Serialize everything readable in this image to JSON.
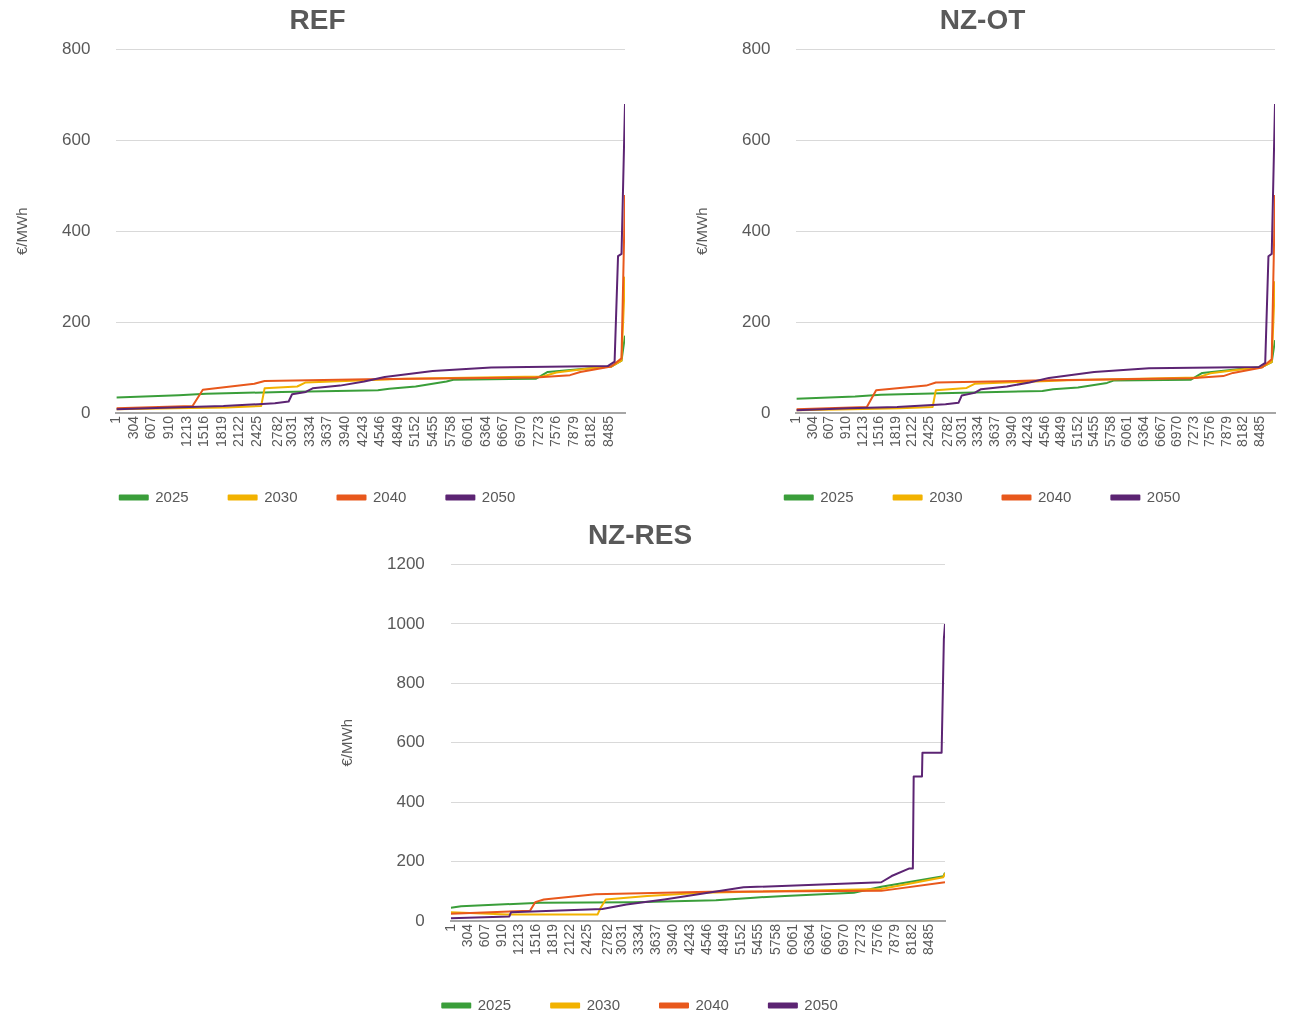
{
  "chart_data": [
    {
      "type": "line",
      "title": "REF",
      "ylabel": "€/MWh",
      "xlim": [
        0,
        8760
      ],
      "xticks": [
        1,
        304,
        607,
        910,
        1213,
        1516,
        1819,
        2122,
        2425,
        2782,
        3031,
        3334,
        3637,
        3940,
        4243,
        4546,
        4849,
        5152,
        5455,
        5758,
        6061,
        6364,
        6667,
        6970,
        7273,
        7576,
        7879,
        8182,
        8485
      ],
      "ylim": [
        0,
        800
      ],
      "yticks": [
        0,
        200,
        400,
        600,
        800
      ],
      "grid": "y",
      "legend": "bottom",
      "line_style": "solid",
      "series": [
        {
          "name": "2025",
          "color": "#3a9e3a",
          "x": [
            1,
            1075,
            1548,
            2849,
            4504,
            4700,
            5154,
            5686,
            5804,
            7222,
            7429,
            8168,
            8522,
            8700,
            8760
          ],
          "values": [
            34,
            39,
            42,
            46,
            50,
            53,
            58,
            69,
            73,
            75,
            90,
            98,
            102,
            115,
            170
          ]
        },
        {
          "name": "2030",
          "color": "#f2b200",
          "x": [
            1,
            1000,
            1903,
            2494,
            2553,
            3115,
            3262,
            4976,
            7340,
            7577,
            8168,
            8522,
            8700,
            8760
          ],
          "values": [
            8,
            10,
            12,
            15,
            54,
            58,
            67,
            75,
            80,
            89,
            98,
            102,
            115,
            300
          ]
        },
        {
          "name": "2040",
          "color": "#e8581c",
          "x": [
            1,
            1312,
            1489,
            2376,
            2553,
            4326,
            7222,
            7813,
            7990,
            8522,
            8700,
            8760
          ],
          "values": [
            10,
            15,
            51,
            64,
            70,
            74,
            78,
            83,
            90,
            102,
            120,
            480
          ]
        },
        {
          "name": "2050",
          "color": "#5c2473",
          "x": [
            1,
            957,
            1844,
            2730,
            2967,
            3026,
            3262,
            3380,
            3853,
            4267,
            4622,
            5449,
            6454,
            8463,
            8581,
            8640,
            8700,
            8760
          ],
          "values": [
            8,
            12,
            15,
            21,
            25,
            41,
            46,
            54,
            60,
            69,
            79,
            92,
            100,
            103,
            113,
            345,
            350,
            680
          ]
        }
      ]
    },
    {
      "type": "line",
      "title": "NZ-OT",
      "ylabel": "€/MWh",
      "xlim": [
        0,
        8760
      ],
      "xticks": [
        1,
        304,
        607,
        910,
        1213,
        1516,
        1819,
        2122,
        2425,
        2782,
        3031,
        3334,
        3637,
        3940,
        4243,
        4546,
        4849,
        5152,
        5455,
        5758,
        6061,
        6364,
        6667,
        6970,
        7273,
        7576,
        7879,
        8182,
        8485
      ],
      "ylim": [
        0,
        800
      ],
      "yticks": [
        0,
        200,
        400,
        600,
        800
      ],
      "grid": "y",
      "legend": "bottom",
      "line_style": "solid",
      "series": [
        {
          "name": "2025",
          "color": "#3a9e3a",
          "x": [
            1,
            1075,
            1548,
            2849,
            4504,
            4700,
            5154,
            5686,
            5804,
            7222,
            7429,
            8168,
            8522,
            8700,
            8760
          ],
          "values": [
            31,
            36,
            40,
            44,
            48,
            52,
            56,
            66,
            71,
            73,
            88,
            97,
            101,
            112,
            160
          ]
        },
        {
          "name": "2030",
          "color": "#f2b200",
          "x": [
            1,
            1000,
            1903,
            2494,
            2553,
            3115,
            3262,
            4976,
            7340,
            7577,
            8168,
            8522,
            8700,
            8760
          ],
          "values": [
            6,
            8,
            10,
            13,
            50,
            55,
            64,
            72,
            78,
            87,
            96,
            101,
            112,
            290
          ]
        },
        {
          "name": "2040",
          "color": "#e8581c",
          "x": [
            1,
            1290,
            1460,
            2376,
            2553,
            4326,
            7222,
            7813,
            7990,
            8522,
            8700,
            8760
          ],
          "values": [
            8,
            13,
            50,
            60,
            67,
            71,
            76,
            81,
            88,
            100,
            118,
            480
          ]
        },
        {
          "name": "2050",
          "color": "#5c2473",
          "x": [
            1,
            957,
            1844,
            2730,
            2967,
            3026,
            3262,
            3380,
            3853,
            4267,
            4622,
            5449,
            6454,
            8463,
            8581,
            8640,
            8700,
            8760
          ],
          "values": [
            6,
            10,
            13,
            19,
            22,
            38,
            44,
            52,
            58,
            67,
            77,
            90,
            98,
            101,
            110,
            345,
            350,
            680
          ]
        }
      ]
    },
    {
      "type": "line",
      "title": "NZ-RES",
      "ylabel": "€/MWh",
      "xlim": [
        0,
        8760
      ],
      "xticks": [
        1,
        304,
        607,
        910,
        1213,
        1516,
        1819,
        2122,
        2425,
        2782,
        3031,
        3334,
        3637,
        3940,
        4243,
        4546,
        4849,
        5152,
        5455,
        5758,
        6061,
        6364,
        6667,
        6970,
        7273,
        7576,
        7879,
        8182,
        8485
      ],
      "ylim": [
        0,
        1200
      ],
      "yticks": [
        0,
        200,
        400,
        600,
        800,
        1000,
        1200
      ],
      "grid": "y",
      "legend": "bottom",
      "line_style": "solid",
      "series": [
        {
          "name": "2025",
          "color": "#3a9e3a",
          "x": [
            1,
            183,
            1587,
            3236,
            4700,
            5372,
            5922,
            7143,
            7631,
            8730,
            8760
          ],
          "values": [
            44,
            49,
            61,
            63,
            69,
            78,
            84,
            95,
            115,
            150,
            162
          ]
        },
        {
          "name": "2030",
          "color": "#f2b200",
          "x": [
            1,
            1000,
            2600,
            2656,
            2747,
            3480,
            4457,
            7631,
            8730,
            8760
          ],
          "values": [
            29,
            21,
            21,
            44,
            72,
            84,
            95,
            107,
            147,
            160
          ]
        },
        {
          "name": "2040",
          "color": "#e8581c",
          "x": [
            1,
            1404,
            1496,
            1648,
            2564,
            4579,
            7631,
            8760
          ],
          "values": [
            24,
            34,
            63,
            72,
            90,
            98,
            101,
            130
          ]
        },
        {
          "name": "2050",
          "color": "#5c2473",
          "x": [
            1,
            1038,
            1068,
            2686,
            3114,
            3785,
            5189,
            7631,
            7814,
            8120,
            8190,
            8205,
            8352,
            8360,
            8700,
            8740,
            8760
          ],
          "values": [
            9,
            15,
            29,
            40,
            55,
            72,
            113,
            130,
            151,
            176,
            176,
            486,
            486,
            566,
            566,
            950,
            1000
          ]
        }
      ]
    }
  ]
}
